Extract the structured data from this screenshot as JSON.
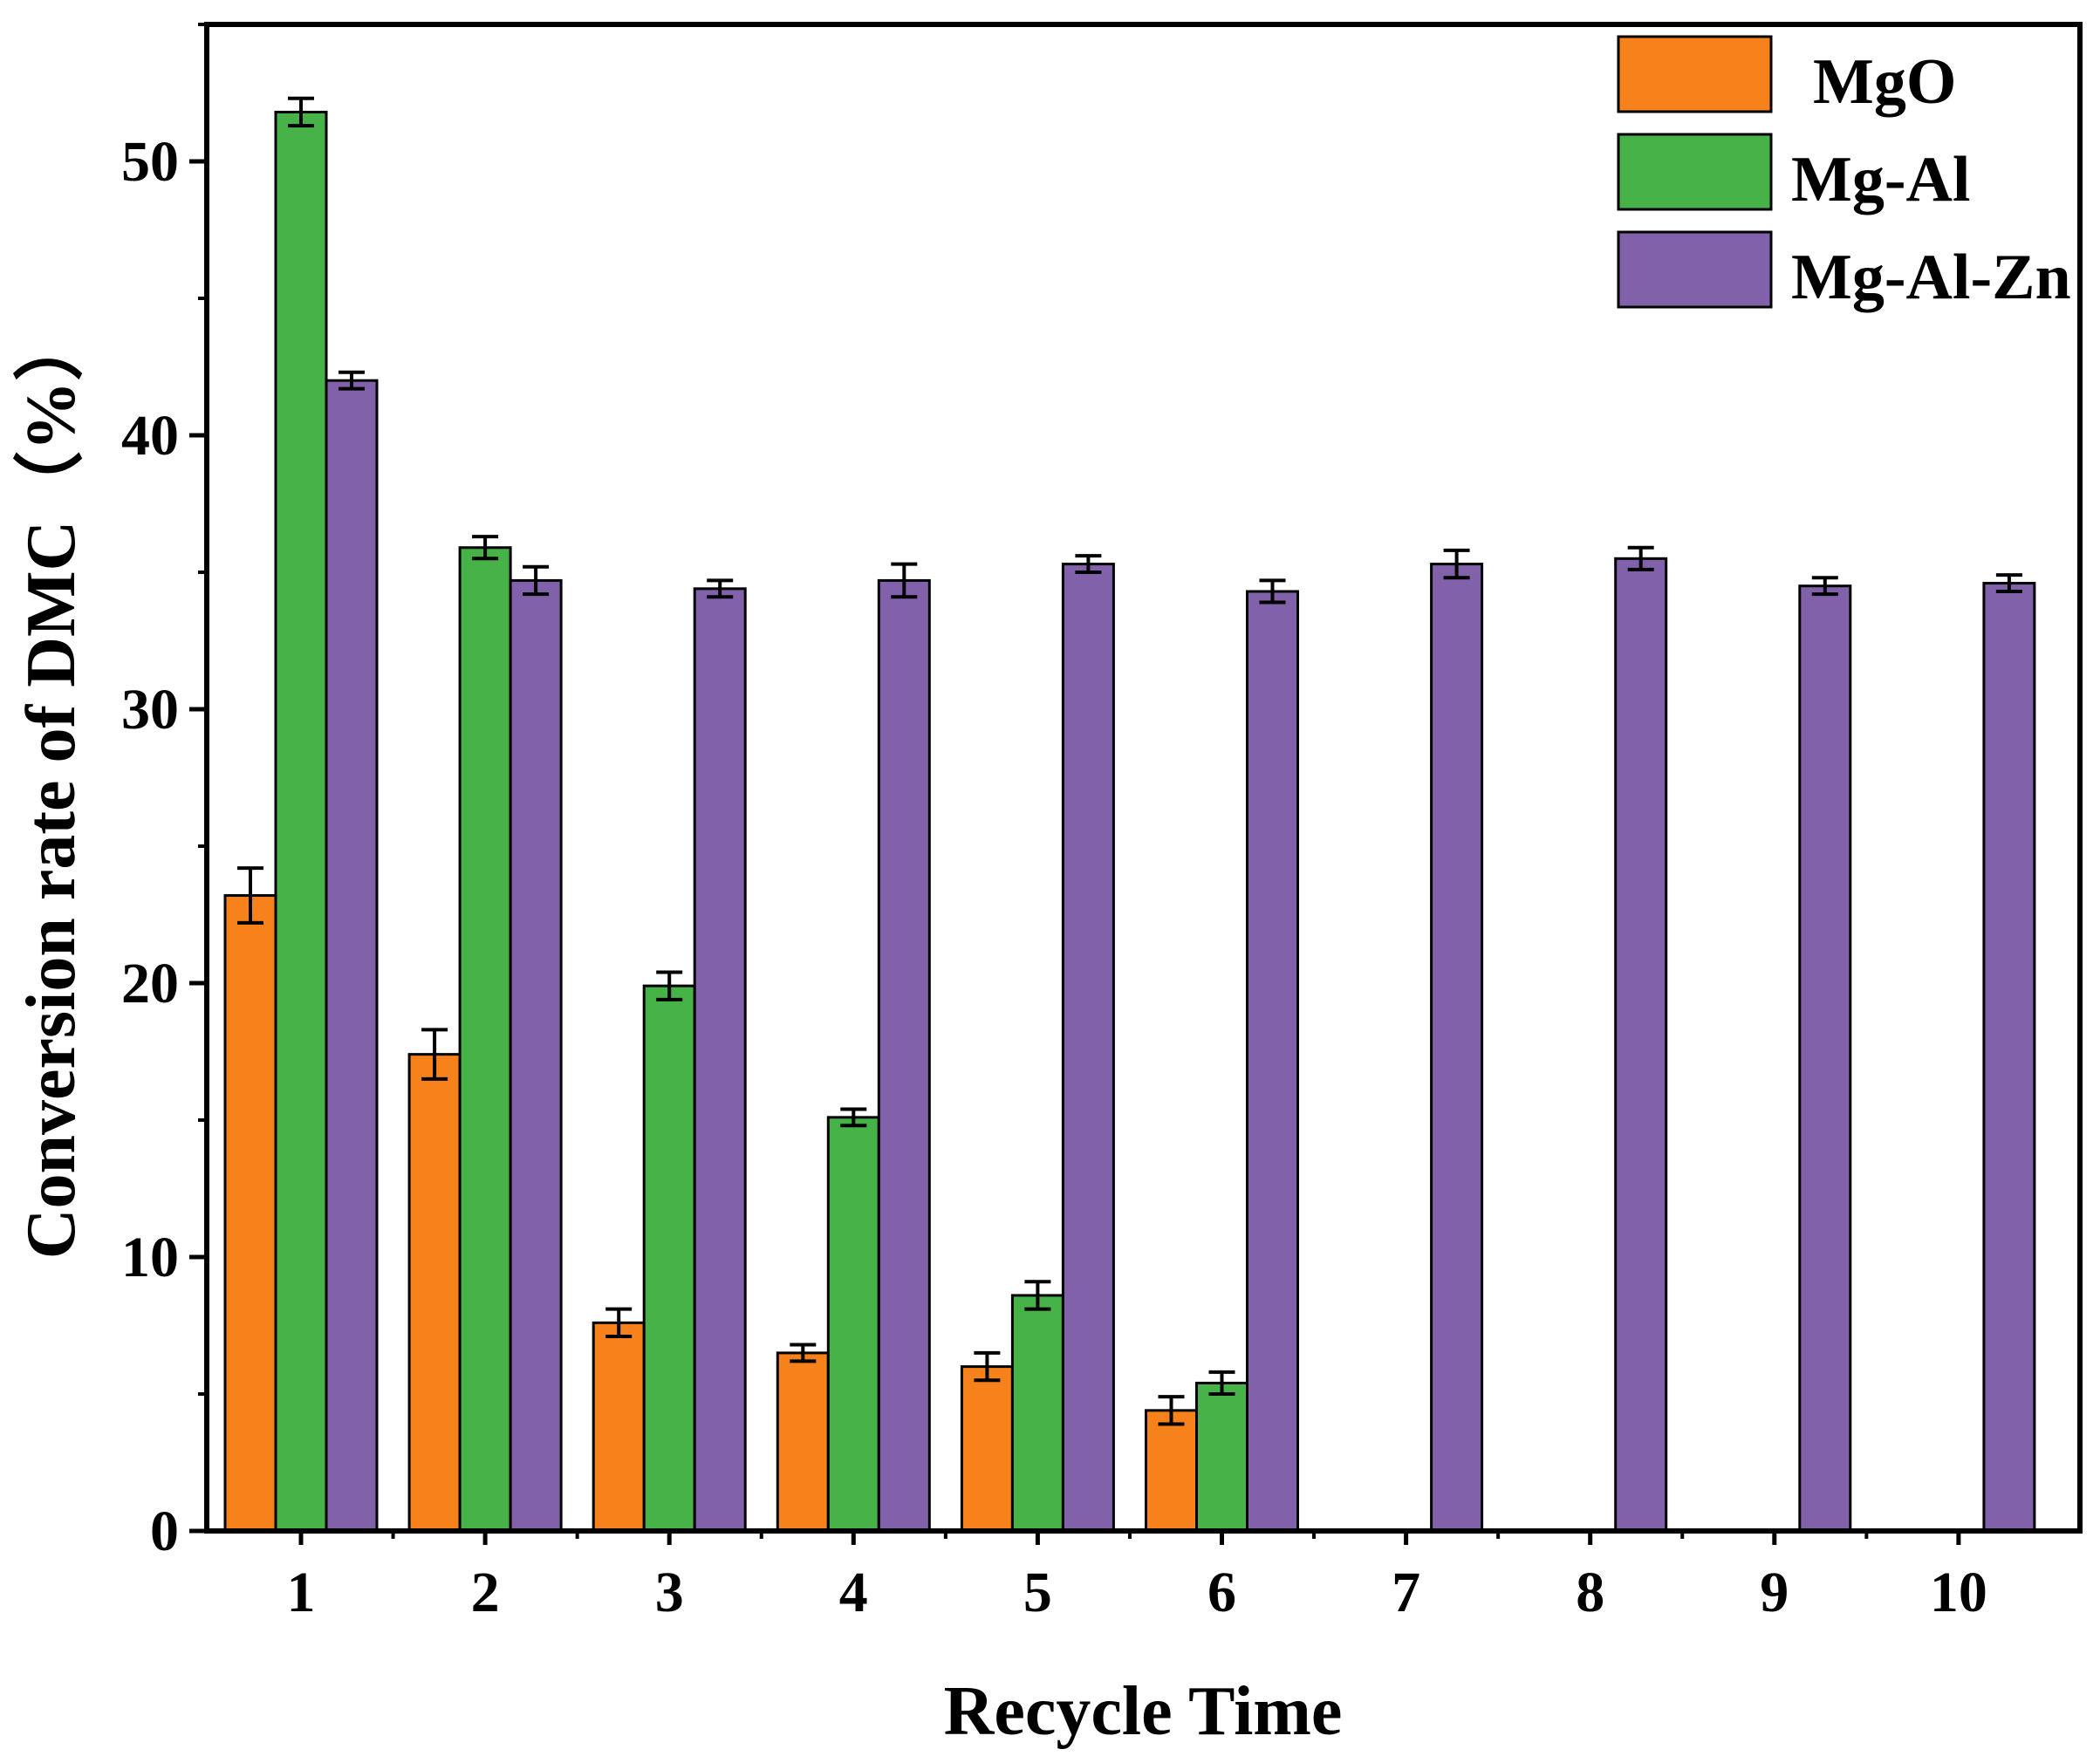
{
  "chart_data": {
    "type": "bar",
    "title": "",
    "xlabel": "Recycle Time",
    "ylabel": "Conversion rate of DMC（%）",
    "categories": [
      "1",
      "2",
      "3",
      "4",
      "5",
      "6",
      "7",
      "8",
      "9",
      "10"
    ],
    "ylim": [
      0,
      55
    ],
    "yticks": [
      0,
      10,
      20,
      30,
      40,
      50
    ],
    "grid": false,
    "legend_position": "top-right",
    "series": [
      {
        "name": "MgO",
        "color": "#F7821B",
        "values": [
          23.2,
          17.4,
          7.6,
          6.5,
          6.0,
          4.4,
          null,
          null,
          null,
          null
        ],
        "errors": [
          1.0,
          0.9,
          0.5,
          0.3,
          0.5,
          0.5,
          null,
          null,
          null,
          null
        ]
      },
      {
        "name": "Mg-Al",
        "color": "#46B247",
        "values": [
          51.8,
          35.9,
          19.9,
          15.1,
          8.6,
          5.4,
          null,
          null,
          null,
          null
        ],
        "errors": [
          0.5,
          0.4,
          0.5,
          0.3,
          0.5,
          0.4,
          null,
          null,
          null,
          null
        ]
      },
      {
        "name": "Mg-Al-Zn",
        "color": "#8261AB",
        "values": [
          42.0,
          34.7,
          34.4,
          34.7,
          35.3,
          34.3,
          35.3,
          35.5,
          34.5,
          34.6
        ],
        "errors": [
          0.3,
          0.5,
          0.3,
          0.6,
          0.3,
          0.4,
          0.5,
          0.4,
          0.3,
          0.3
        ]
      }
    ]
  }
}
